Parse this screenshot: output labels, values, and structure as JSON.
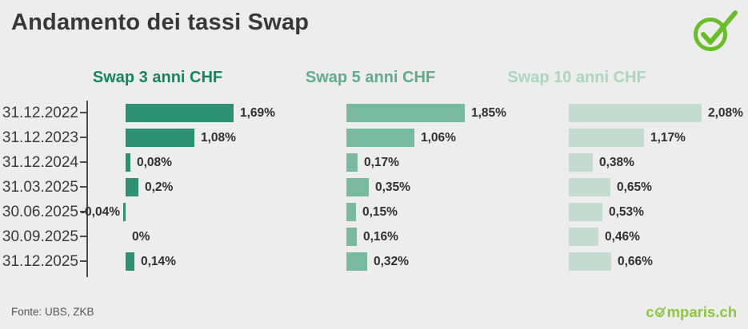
{
  "title": "Andamento dei tassi Swap",
  "footer": {
    "source": "Fonte: UBS, ZKB",
    "brand": {
      "text": "comparis.ch",
      "prefix": "c",
      "suffix": "mparis.ch",
      "color": "#8CC63E"
    }
  },
  "colors": {
    "background": "#EDEDED",
    "title_text": "#383838",
    "axis": "#4D4D4D",
    "value_text": "#303030",
    "badge_green": "#69BE28"
  },
  "chart_data": {
    "type": "bar",
    "orientation": "horizontal",
    "unit": "%",
    "title": "Andamento dei tassi Swap",
    "categories": [
      "31.12.2022",
      "31.12.2023",
      "31.12.2024",
      "31.03.2025",
      "30.06.2025",
      "30.09.2025",
      "31.12.2025"
    ],
    "series": [
      {
        "name": "Swap 3 anni CHF",
        "bar_color": "#2E9171",
        "header_color": "#12875D",
        "values": [
          1.69,
          1.08,
          0.08,
          0.2,
          -0.04,
          0,
          0.14
        ],
        "labels": [
          "1,69%",
          "1,08%",
          "0,08%",
          "0,2%",
          "-0,04%",
          "0%",
          "0,14%"
        ]
      },
      {
        "name": "Swap 5 anni CHF",
        "bar_color": "#77B9A1",
        "header_color": "#5FAD8C",
        "values": [
          1.85,
          1.06,
          0.17,
          0.35,
          0.15,
          0.16,
          0.32
        ],
        "labels": [
          "1,85%",
          "1,06%",
          "0,17%",
          "0,35%",
          "0,15%",
          "0,16%",
          "0,32%"
        ]
      },
      {
        "name": "Swap 10 anni CHF",
        "bar_color": "#C2DDD0",
        "header_color": "#ABD4C2",
        "values": [
          2.08,
          1.17,
          0.38,
          0.65,
          0.53,
          0.46,
          0.66
        ],
        "labels": [
          "2,08%",
          "1,17%",
          "0,38%",
          "0,65%",
          "0,53%",
          "0,46%",
          "0,66%"
        ]
      }
    ],
    "xlim": [
      -0.1,
      2.3
    ],
    "grid": false,
    "legend_position": "column-headers"
  }
}
